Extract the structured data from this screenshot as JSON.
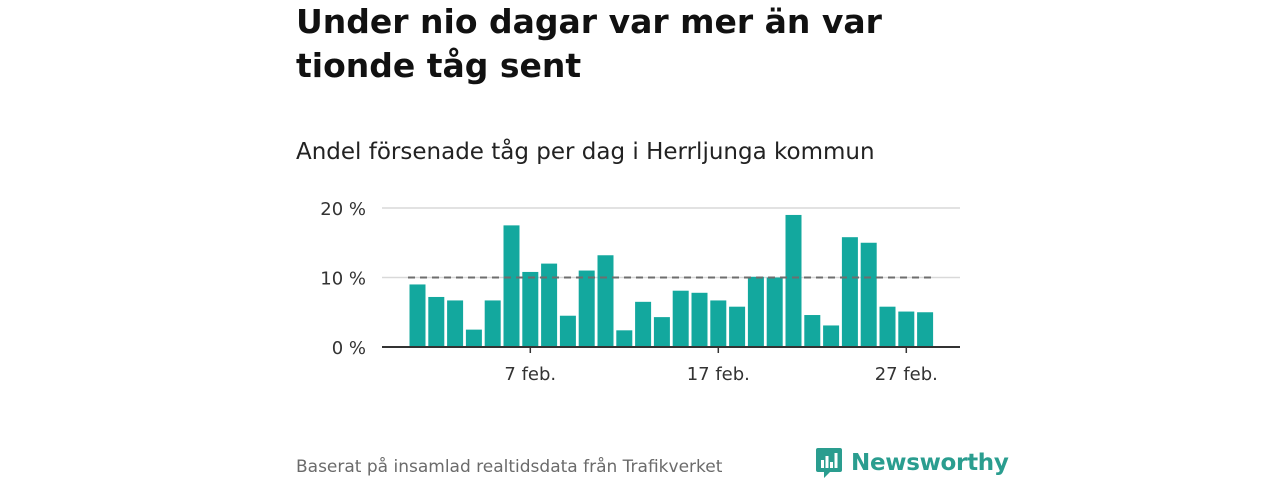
{
  "title": "Under nio dagar var mer än var tionde tåg sent",
  "subtitle": "Andel försenade tåg per dag i Herrljunga kommun",
  "source": "Baserat på insamlad realtidsdata från Trafikverket",
  "brand": {
    "name": "Newsworthy",
    "icon": "newsworthy-logo-icon",
    "color": "#2a9d8f"
  },
  "colors": {
    "bar": "#13a89e",
    "reference_line": "#6e6e6e",
    "grid": "#d9d9d9",
    "axis": "#333333"
  },
  "chart_data": {
    "type": "bar",
    "title": "Andel försenade tåg per dag i Herrljunga kommun",
    "xlabel": "",
    "ylabel": "",
    "x": [
      1,
      2,
      3,
      4,
      5,
      6,
      7,
      8,
      9,
      10,
      11,
      12,
      13,
      14,
      15,
      16,
      17,
      18,
      19,
      20,
      21,
      22,
      23,
      24,
      25,
      26,
      27,
      28
    ],
    "values": [
      9.0,
      7.2,
      6.7,
      2.5,
      6.7,
      17.5,
      10.8,
      12.0,
      4.5,
      11.0,
      13.2,
      2.4,
      6.5,
      4.3,
      8.1,
      7.8,
      6.7,
      5.8,
      10.1,
      10.0,
      19.0,
      4.6,
      3.1,
      15.8,
      15.0,
      5.8,
      5.1,
      5.0
    ],
    "ylim": [
      0,
      20
    ],
    "yticks": [
      {
        "value": 0,
        "label": "0 %"
      },
      {
        "value": 10,
        "label": "10 %"
      },
      {
        "value": 20,
        "label": "20 %"
      }
    ],
    "xticks": [
      {
        "x": 7,
        "label": "7 feb."
      },
      {
        "x": 17,
        "label": "17 feb."
      },
      {
        "x": 27,
        "label": "27 feb."
      }
    ],
    "reference_line": {
      "value": 10,
      "style": "dashed"
    },
    "grid": true
  }
}
